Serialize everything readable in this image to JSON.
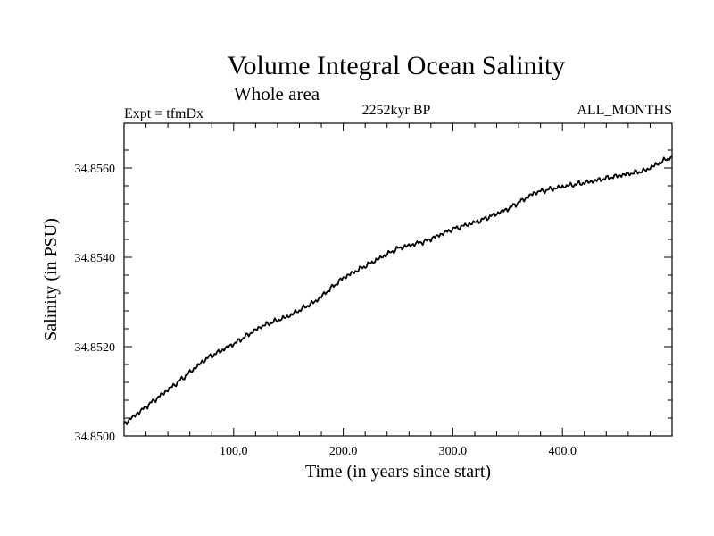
{
  "chart_data": {
    "type": "line",
    "title": "Volume Integral Ocean Salinity",
    "subtitle": "Whole area",
    "left_label": "Expt = tfmDx",
    "center_label": "2252kyr BP",
    "right_label": "ALL_MONTHS",
    "xlabel": "Time (in years since start)",
    "ylabel": "Salinity (in PSU)",
    "xlim": [
      0,
      500
    ],
    "ylim": [
      34.85,
      34.857
    ],
    "xticks": [
      100,
      200,
      300,
      400
    ],
    "xtick_labels": [
      "100.0",
      "200.0",
      "300.0",
      "400.0"
    ],
    "yticks": [
      34.85,
      34.852,
      34.854,
      34.856
    ],
    "ytick_labels": [
      "34.8500",
      "34.8520",
      "34.8540",
      "34.8560"
    ],
    "series": [
      {
        "name": "Salinity",
        "x": [
          0,
          25,
          50,
          75,
          100,
          125,
          150,
          175,
          200,
          225,
          250,
          275,
          300,
          325,
          350,
          375,
          400,
          425,
          450,
          475,
          500
        ],
        "y": [
          34.85027,
          34.85075,
          34.85122,
          34.85173,
          34.85206,
          34.85245,
          34.85268,
          34.85302,
          34.85354,
          34.85387,
          34.8542,
          34.85436,
          34.85463,
          34.85482,
          34.85508,
          34.85545,
          34.85558,
          34.85569,
          34.85582,
          34.85594,
          34.85626
        ]
      }
    ]
  }
}
